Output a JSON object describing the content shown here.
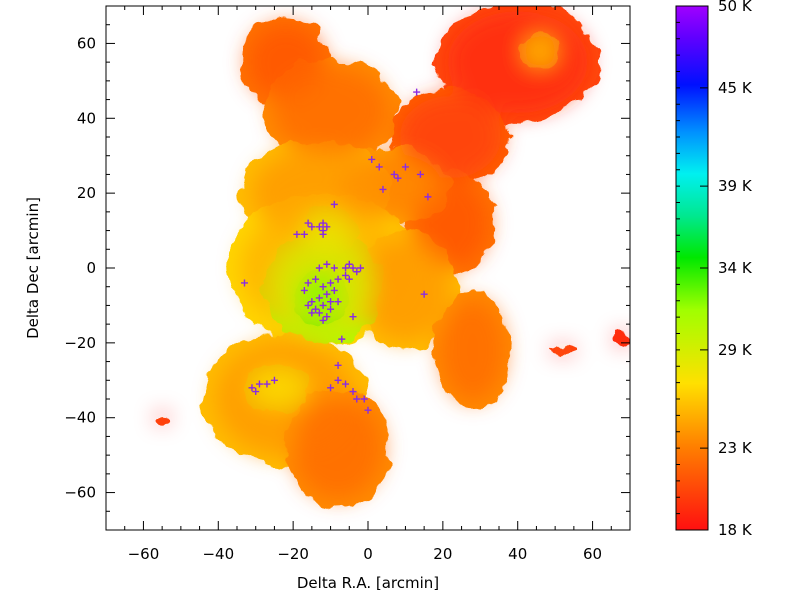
{
  "chart_data": {
    "type": "heatmap",
    "xlabel": "Delta R.A. [arcmin]",
    "ylabel": "Delta Dec [arcmin]",
    "xlim": [
      -70,
      70
    ],
    "ylim": [
      -70,
      70
    ],
    "x_ticks": [
      -60,
      -40,
      -20,
      0,
      20,
      40,
      60
    ],
    "y_ticks": [
      60,
      40,
      20,
      0,
      -20,
      -40,
      -60
    ],
    "x_tick_labels": [
      "−60",
      "−40",
      "−20",
      "0",
      "20",
      "40",
      "60"
    ],
    "y_tick_labels": [
      "60",
      "40",
      "20",
      "0",
      "−20",
      "−40",
      "−60"
    ],
    "colorbar": {
      "min": 18,
      "max": 50,
      "unit": "K",
      "tick_values": [
        50,
        45,
        39,
        34,
        29,
        23,
        18
      ],
      "tick_labels": [
        "50 K",
        "45 K",
        "39 K",
        "34 K",
        "29 K",
        "23 K",
        "18 K"
      ]
    },
    "regions": [
      {
        "x": 40,
        "y": 55,
        "rx": 22,
        "ry": 16,
        "temp": 19
      },
      {
        "x": 22,
        "y": 35,
        "rx": 16,
        "ry": 13,
        "temp": 20
      },
      {
        "x": 22,
        "y": 12,
        "rx": 12,
        "ry": 14,
        "temp": 21
      },
      {
        "x": -22,
        "y": 55,
        "rx": 12,
        "ry": 12,
        "temp": 21
      },
      {
        "x": -10,
        "y": 42,
        "rx": 18,
        "ry": 14,
        "temp": 22
      },
      {
        "x": 6,
        "y": 22,
        "rx": 16,
        "ry": 10,
        "temp": 23
      },
      {
        "x": -14,
        "y": 20,
        "rx": 20,
        "ry": 14,
        "temp": 24
      },
      {
        "x": -12,
        "y": 0,
        "rx": 26,
        "ry": 20,
        "temp": 25
      },
      {
        "x": 10,
        "y": -6,
        "rx": 14,
        "ry": 16,
        "temp": 24
      },
      {
        "x": -22,
        "y": -35,
        "rx": 22,
        "ry": 18,
        "temp": 24
      },
      {
        "x": -8,
        "y": -48,
        "rx": 14,
        "ry": 16,
        "temp": 22
      },
      {
        "x": 28,
        "y": -22,
        "rx": 10,
        "ry": 16,
        "temp": 22
      },
      {
        "x": -12,
        "y": -5,
        "rx": 16,
        "ry": 15,
        "temp": 29
      },
      {
        "x": -11,
        "y": 10,
        "rx": 8,
        "ry": 6,
        "temp": 28
      },
      {
        "x": -13,
        "y": -8,
        "rx": 7,
        "ry": 8,
        "temp": 32
      },
      {
        "x": -24,
        "y": -32,
        "rx": 9,
        "ry": 6,
        "temp": 27
      },
      {
        "x": 46,
        "y": 58,
        "rx": 5,
        "ry": 5,
        "temp": 26
      },
      {
        "x": -55,
        "y": -40,
        "rx": 2,
        "ry": 1.5,
        "temp": 19
      },
      {
        "x": 52,
        "y": -22,
        "rx": 4,
        "ry": 1,
        "temp": 19
      },
      {
        "x": 68,
        "y": -19,
        "rx": 2,
        "ry": 2,
        "temp": 18
      }
    ],
    "sources": [
      [
        13,
        47
      ],
      [
        1,
        29
      ],
      [
        3,
        27
      ],
      [
        7,
        25
      ],
      [
        8,
        24
      ],
      [
        10,
        27
      ],
      [
        4,
        21
      ],
      [
        14,
        25
      ],
      [
        16,
        19
      ],
      [
        -16,
        12
      ],
      [
        -15,
        11
      ],
      [
        -13,
        11
      ],
      [
        -12,
        12
      ],
      [
        -12,
        10
      ],
      [
        -11,
        11
      ],
      [
        -12,
        9
      ],
      [
        -9,
        17
      ],
      [
        -19,
        9
      ],
      [
        -17,
        9
      ],
      [
        -13,
        0
      ],
      [
        -11,
        1
      ],
      [
        -9,
        0
      ],
      [
        -6,
        0
      ],
      [
        -5,
        1
      ],
      [
        -4,
        0
      ],
      [
        -3,
        -1
      ],
      [
        -2,
        0
      ],
      [
        -6,
        -2
      ],
      [
        -5,
        -3
      ],
      [
        -8,
        -3
      ],
      [
        -16,
        -4
      ],
      [
        -14,
        -3
      ],
      [
        -12,
        -5
      ],
      [
        -10,
        -4
      ],
      [
        -9,
        -6
      ],
      [
        -11,
        -7
      ],
      [
        -13,
        -8
      ],
      [
        -15,
        -9
      ],
      [
        -14,
        -11
      ],
      [
        -12,
        -10
      ],
      [
        -10,
        -9
      ],
      [
        -16,
        -10
      ],
      [
        -15,
        -12
      ],
      [
        -13,
        -12
      ],
      [
        -11,
        -13
      ],
      [
        -17,
        -6
      ],
      [
        -8,
        -9
      ],
      [
        -12,
        -14
      ],
      [
        -10,
        -11
      ],
      [
        -4,
        -13
      ],
      [
        -33,
        -4
      ],
      [
        15,
        -7
      ],
      [
        -7,
        -19
      ],
      [
        -8,
        -26
      ],
      [
        -8,
        -30
      ],
      [
        -6,
        -31
      ],
      [
        -4,
        -33
      ],
      [
        -3,
        -35
      ],
      [
        -10,
        -32
      ],
      [
        -1,
        -35
      ],
      [
        0,
        -38
      ],
      [
        -31,
        -32
      ],
      [
        -30,
        -33
      ],
      [
        -29,
        -31
      ],
      [
        -27,
        -31
      ],
      [
        -25,
        -30
      ]
    ]
  }
}
